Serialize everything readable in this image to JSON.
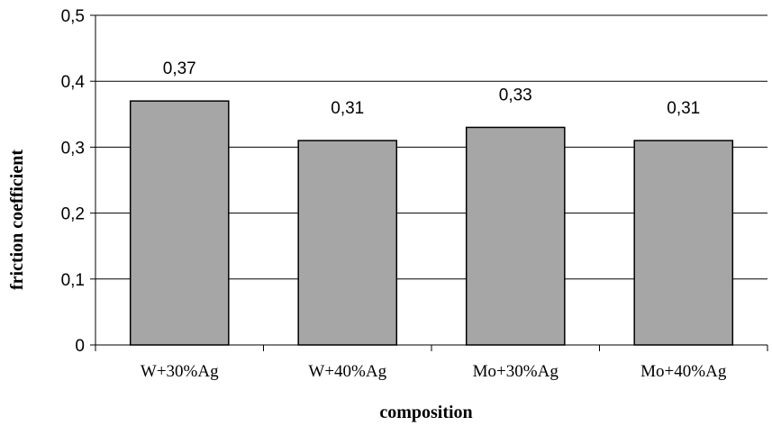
{
  "chart_data": {
    "type": "bar",
    "categories": [
      "W+30%Ag",
      "W+40%Ag",
      "Mo+30%Ag",
      "Mo+40%Ag"
    ],
    "values": [
      0.37,
      0.31,
      0.33,
      0.31
    ],
    "data_labels": [
      "0,37",
      "0,31",
      "0,33",
      "0,31"
    ],
    "xlabel": "composition",
    "ylabel": "friction coefficient",
    "ylim": [
      0,
      0.5
    ],
    "yticks": [
      0,
      0.1,
      0.2,
      0.3,
      0.4,
      0.5
    ],
    "ytick_labels": [
      "0",
      "0,1",
      "0,2",
      "0,3",
      "0,4",
      "0,5"
    ],
    "grid": true,
    "legend": "none",
    "bar_color": "#a6a6a6"
  }
}
